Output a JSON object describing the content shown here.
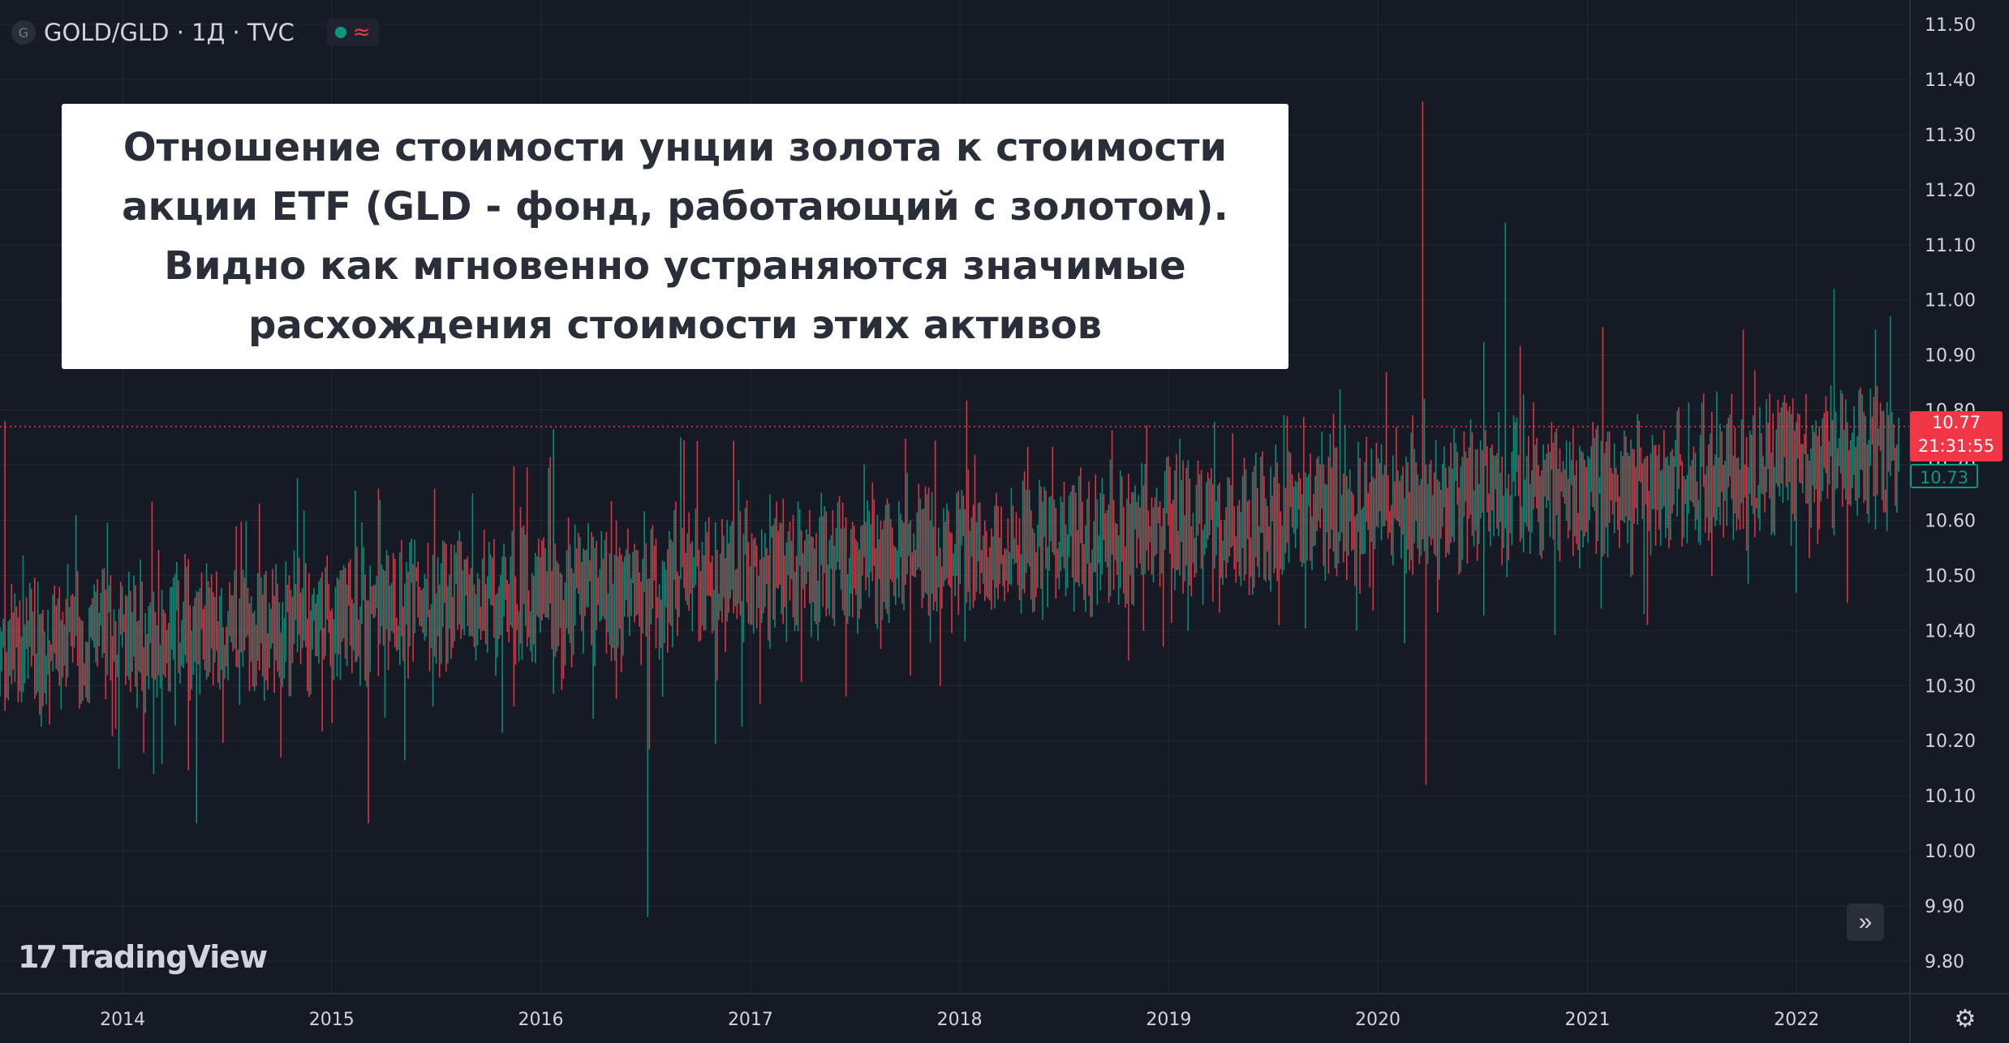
{
  "symbol": {
    "title": "GOLD/GLD · 1Д · TVC",
    "logo_letter": "G",
    "status_dot_color": "#089981",
    "status_icon": "≈"
  },
  "annotation": {
    "text": "Отношение стоимости унции золота к стоимости\nакции ETF (GLD - фонд, работающий с золотом).\nВидно как мгновенно устраняются значимые\nрасхождения стоимости этих активов"
  },
  "branding": {
    "logo_mark": "17",
    "logo_text": "TradingView"
  },
  "price_scale": {
    "current_price": "10.77",
    "countdown": "21:31:55",
    "reference_price": "10.73"
  },
  "controls": {
    "scroll_icon": "»",
    "settings_icon": "⚙"
  },
  "colors": {
    "up": "#089981",
    "down": "#f23645",
    "background": "#161a25",
    "grid": "#232733",
    "text": "#d1d4dc"
  },
  "chart_data": {
    "type": "candlestick",
    "series_name": "GOLD/GLD",
    "interval": "1Д",
    "ylim": [
      9.75,
      11.53
    ],
    "y_ticks": [
      "11.50",
      "11.40",
      "11.30",
      "11.20",
      "11.10",
      "11.00",
      "10.90",
      "10.80",
      "10.70",
      "10.60",
      "10.50",
      "10.40",
      "10.30",
      "10.20",
      "10.10",
      "10.00",
      "9.90",
      "9.80"
    ],
    "x_ticks": [
      "2014",
      "2015",
      "2016",
      "2017",
      "2018",
      "2019",
      "2020",
      "2021",
      "2022"
    ],
    "xlim": [
      "2013-06-01",
      "2022-07-01"
    ],
    "grid": true,
    "trend": {
      "start_value": 10.36,
      "end_value": 10.72
    },
    "current_price": 10.77,
    "spikes": [
      {
        "date": "2013-06-10",
        "high": 10.78
      },
      {
        "date": "2014-05-10",
        "high": 10.05,
        "low_spike": true
      },
      {
        "date": "2015-03-05",
        "high": 10.05,
        "low_spike": true
      },
      {
        "date": "2016-04-01",
        "high": 10.24,
        "low_spike": true
      },
      {
        "date": "2016-07-05",
        "high": 9.88,
        "low_spike": true
      },
      {
        "date": "2016-09-01",
        "high": 10.75
      },
      {
        "date": "2020-03-20",
        "high": 11.36
      },
      {
        "date": "2020-03-25",
        "high": 10.12,
        "low_spike": true
      },
      {
        "date": "2020-08-10",
        "high": 11.14
      },
      {
        "date": "2021-04-10",
        "high": 10.43,
        "low_spike": true
      },
      {
        "date": "2022-03-08",
        "high": 11.02
      },
      {
        "date": "2022-04-01",
        "high": 10.45,
        "low_spike": true
      },
      {
        "date": "2022-06-15",
        "high": 10.97
      }
    ]
  }
}
